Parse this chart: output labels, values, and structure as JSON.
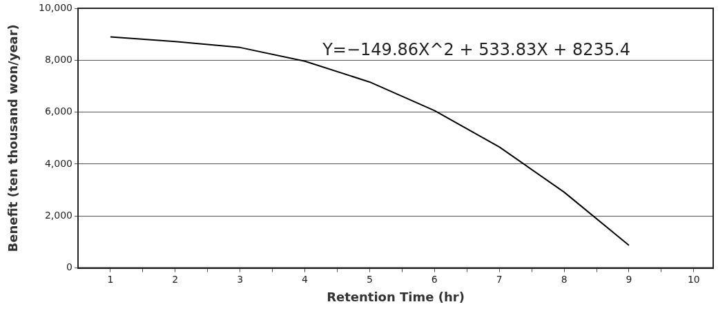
{
  "chart_data": {
    "type": "line",
    "xlabel": "Retention Time (hr)",
    "ylabel": "Benefit (ten thousand won/year)",
    "x": [
      1,
      2,
      3,
      4,
      5,
      6,
      7,
      8,
      9
    ],
    "series": [
      {
        "color": "#000000",
        "values": [
          8900,
          8720,
          8490,
          7960,
          7160,
          6060,
          4660,
          2920,
          870
        ]
      }
    ],
    "xlim": [
      0.5,
      10.3
    ],
    "xticks": [
      1,
      {
        "value": 1.5,
        "label": null
      },
      2,
      {
        "value": 2.5,
        "label": null
      },
      3,
      {
        "value": 3.5,
        "label": null
      },
      4,
      {
        "value": 4.5,
        "label": null
      },
      5,
      {
        "value": 5.5,
        "label": null
      },
      6,
      {
        "value": 6.5,
        "label": null
      },
      7,
      {
        "value": 7.5,
        "label": null
      },
      8,
      {
        "value": 8.5,
        "label": null
      },
      9,
      {
        "value": 9.5,
        "label": null
      },
      10
    ],
    "ylim": [
      0,
      10000
    ],
    "yticks": [
      0,
      {
        "value": 2000,
        "label": "2,000"
      },
      {
        "value": 4000,
        "label": "4,000"
      },
      {
        "value": 6000,
        "label": "6,000"
      },
      {
        "value": 8000,
        "label": "8,000"
      },
      {
        "value": 10000,
        "label": "10,000"
      }
    ],
    "grid": "y",
    "legend": false,
    "marker": "none",
    "line_style": "solid",
    "annotations": [
      "Y=−149.86X^2 + 533.83X + 8235.4"
    ]
  }
}
